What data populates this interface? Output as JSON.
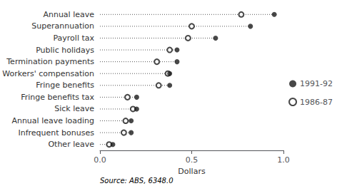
{
  "chart_data": {
    "type": "dot",
    "orientation": "horizontal",
    "categories": [
      "Annual leave",
      "Superannuation",
      "Payroll tax",
      "Public holidays",
      "Termination payments",
      "Workers' compensation",
      "Fringe benefits",
      "Fringe benefits tax",
      "Sick leave",
      "Annual leave loading",
      "Infrequent bonuses",
      "Other leave"
    ],
    "series": [
      {
        "name": "1991-92",
        "color": "#1a1a1a",
        "marker": "filled",
        "values": [
          0.95,
          0.82,
          0.63,
          0.42,
          0.42,
          0.38,
          0.38,
          0.2,
          0.2,
          0.17,
          0.17,
          0.07
        ]
      },
      {
        "name": "1986-87",
        "color": "#1a1a1a",
        "marker": "open",
        "values": [
          0.77,
          0.5,
          0.48,
          0.38,
          0.31,
          0.37,
          0.32,
          0.15,
          0.18,
          0.14,
          0.13,
          0.05
        ]
      }
    ],
    "xlabel": "Dollars",
    "xlim": [
      0.0,
      1.0
    ],
    "xticks": [
      {
        "value": 0.0,
        "label": "0.0"
      },
      0.5,
      {
        "value": 1.0,
        "label": "1.0"
      }
    ],
    "grid": false,
    "legend": "right",
    "annotations": [
      "Source: ABS, 6348.0"
    ]
  }
}
